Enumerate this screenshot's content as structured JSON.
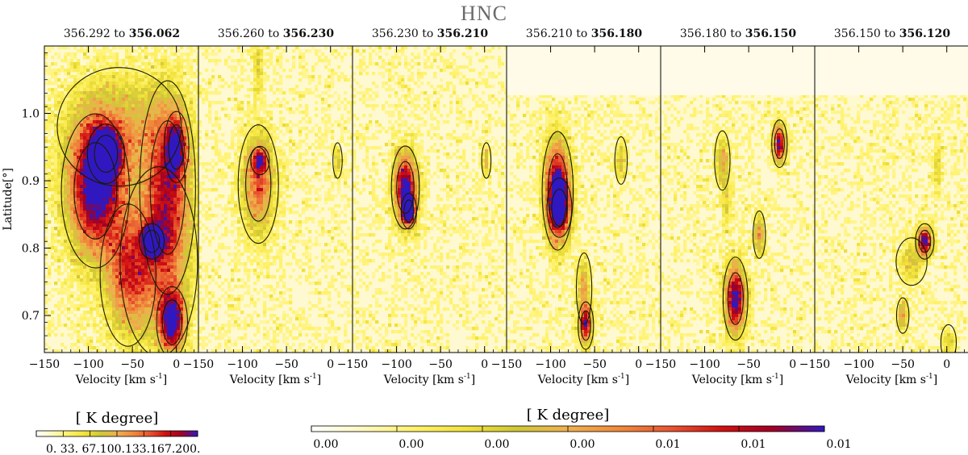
{
  "title": "HNC",
  "panels": [
    {
      "from": "356.292",
      "to_word": "to",
      "to": "356.062"
    },
    {
      "from": "356.260",
      "to_word": "to",
      "to": "356.230"
    },
    {
      "from": "356.230",
      "to_word": "to",
      "to": "356.210"
    },
    {
      "from": "356.210",
      "to_word": "to",
      "to": "356.180"
    },
    {
      "from": "356.180",
      "to_word": "to",
      "to": "356.150"
    },
    {
      "from": "356.150",
      "to_word": "to",
      "to": "356.120"
    }
  ],
  "chart_data": {
    "type": "heatmap",
    "title": "HNC",
    "xlabel": "Velocity [km s",
    "xlabel_sup": "-1",
    "xlabel_close": "]",
    "ylabel": "Latitude[°]",
    "xlim": [
      -150,
      25
    ],
    "ylim": [
      0.645,
      1.1
    ],
    "xticks": [
      -150,
      -100,
      -50,
      0
    ],
    "xtick_labels": [
      "−150",
      "−100",
      "−50",
      "0"
    ],
    "yticks": [
      0.7,
      0.8,
      0.9,
      1.0
    ],
    "ytick_labels": [
      "0.7",
      "0.8",
      "0.9",
      "1.0"
    ],
    "blank_above_latitude": [
      null,
      null,
      null,
      1.027,
      1.027,
      1.027
    ],
    "colormap": [
      "#ffffff",
      "#fff8c0",
      "#fff26a",
      "#f2e23a",
      "#cfc736",
      "#efb050",
      "#f08a3a",
      "#e85530",
      "#d11010",
      "#a00025",
      "#3018c0"
    ],
    "emission_blobs": [
      [
        {
          "v": -92,
          "b": 0.885,
          "sv": 22,
          "sb": 0.065,
          "a": 1.0
        },
        {
          "v": -80,
          "b": 0.94,
          "sv": 12,
          "sb": 0.025,
          "a": 0.75
        },
        {
          "v": -55,
          "b": 0.76,
          "sv": 18,
          "sb": 0.06,
          "a": 0.55
        },
        {
          "v": -10,
          "b": 0.89,
          "sv": 18,
          "sb": 0.09,
          "a": 0.65
        },
        {
          "v": 0,
          "b": 0.95,
          "sv": 8,
          "sb": 0.03,
          "a": 0.6
        },
        {
          "v": -28,
          "b": 0.81,
          "sv": 8,
          "sb": 0.015,
          "a": 0.8
        },
        {
          "v": -5,
          "b": 0.69,
          "sv": 10,
          "sb": 0.03,
          "a": 0.95
        },
        {
          "v": -65,
          "b": 0.98,
          "sv": 40,
          "sb": 0.05,
          "a": 0.35
        },
        {
          "v": -20,
          "b": 0.78,
          "sv": 25,
          "sb": 0.08,
          "a": 0.35
        }
      ],
      [
        {
          "v": -82,
          "b": 0.895,
          "sv": 13,
          "sb": 0.05,
          "a": 0.6
        },
        {
          "v": -80,
          "b": 0.93,
          "sv": 6,
          "sb": 0.012,
          "a": 0.55
        },
        {
          "v": -82,
          "b": 1.07,
          "sv": 4,
          "sb": 0.03,
          "a": 0.25
        },
        {
          "v": 8,
          "b": 0.93,
          "sv": 3,
          "sb": 0.015,
          "a": 0.3
        }
      ],
      [
        {
          "v": -90,
          "b": 0.89,
          "sv": 9,
          "sb": 0.035,
          "a": 1.0
        },
        {
          "v": -86,
          "b": 0.855,
          "sv": 5,
          "sb": 0.015,
          "a": 0.9
        },
        {
          "v": 2,
          "b": 0.93,
          "sv": 3,
          "sb": 0.015,
          "a": 0.35
        }
      ],
      [
        {
          "v": -92,
          "b": 0.885,
          "sv": 10,
          "sb": 0.05,
          "a": 1.0
        },
        {
          "v": -90,
          "b": 0.86,
          "sv": 8,
          "sb": 0.025,
          "a": 0.6
        },
        {
          "v": -60,
          "b": 0.685,
          "sv": 5,
          "sb": 0.02,
          "a": 0.85
        },
        {
          "v": -62,
          "b": 0.74,
          "sv": 5,
          "sb": 0.03,
          "a": 0.4
        },
        {
          "v": -20,
          "b": 0.93,
          "sv": 4,
          "sb": 0.02,
          "a": 0.35
        }
      ],
      [
        {
          "v": -65,
          "b": 0.725,
          "sv": 8,
          "sb": 0.035,
          "a": 1.0
        },
        {
          "v": -15,
          "b": 0.955,
          "sv": 5,
          "sb": 0.02,
          "a": 0.9
        },
        {
          "v": -38,
          "b": 0.82,
          "sv": 4,
          "sb": 0.02,
          "a": 0.5
        },
        {
          "v": -80,
          "b": 0.93,
          "sv": 5,
          "sb": 0.025,
          "a": 0.4
        },
        {
          "v": -75,
          "b": 0.87,
          "sv": 4,
          "sb": 0.03,
          "a": 0.25
        }
      ],
      [
        {
          "v": -25,
          "b": 0.81,
          "sv": 6,
          "sb": 0.015,
          "a": 0.95
        },
        {
          "v": -50,
          "b": 0.7,
          "sv": 4,
          "sb": 0.015,
          "a": 0.45
        },
        {
          "v": -10,
          "b": 0.92,
          "sv": 3,
          "sb": 0.03,
          "a": 0.25
        },
        {
          "v": -40,
          "b": 0.78,
          "sv": 10,
          "sb": 0.02,
          "a": 0.3
        },
        {
          "v": 2,
          "b": 0.66,
          "sv": 5,
          "sb": 0.015,
          "a": 0.3
        }
      ]
    ],
    "colorbars": [
      {
        "label": "[ K degree]",
        "tick_text": "0.  33.  67.100.133.167.200."
      },
      {
        "label": "[ K degree]",
        "tick_labels": [
          "0.00",
          "0.00",
          "0.00",
          "0.00",
          "0.01",
          "0.01",
          "0.01"
        ]
      }
    ]
  }
}
